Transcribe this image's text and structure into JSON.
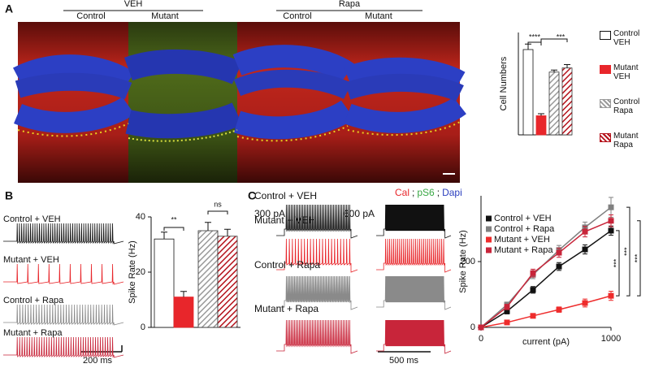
{
  "figure": {
    "panels": [
      "A",
      "B",
      "C"
    ],
    "groups": [
      "VEH",
      "Rapa"
    ],
    "subgroups": [
      "Control",
      "Mutant",
      "Control",
      "Mutant"
    ],
    "stains": [
      {
        "text": "Cal",
        "color": "#e8262b"
      },
      {
        "text": ";",
        "color": "#222222"
      },
      {
        "text": "pS6",
        "color": "#3aa845"
      },
      {
        "text": ";",
        "color": "#222222"
      },
      {
        "text": "Dapi",
        "color": "#2b3fbf"
      }
    ],
    "trace_labels": [
      "Control + VEH",
      "Mutant + VEH",
      "Control + Rapa",
      "Mutant + Rapa"
    ],
    "currents": [
      "300 pA",
      "600 pA"
    ],
    "scale_bars": [
      "200 ms",
      "500 ms"
    ]
  },
  "chart_data": [
    {
      "type": "bar",
      "ylabel": "Cell Numbers",
      "categories": [
        "Control VEH",
        "Mutant VEH",
        "Control Rapa",
        "Mutant Rapa"
      ],
      "values": [
        1250,
        280,
        920,
        980
      ],
      "errors": [
        80,
        30,
        30,
        50
      ],
      "colors": [
        "#ffffff",
        "#e8262b",
        "#9a9a9a",
        "#b5121b"
      ],
      "hatch": [
        false,
        false,
        true,
        true
      ],
      "ylim": [
        0,
        1500
      ],
      "annotations": [
        "****",
        "***"
      ]
    },
    {
      "type": "bar",
      "ylabel": "Spike Rate (Hz)",
      "values": [
        32,
        11,
        35,
        33
      ],
      "errors": [
        2.5,
        2,
        3,
        2.5
      ],
      "colors": [
        "#ffffff",
        "#e8262b",
        "#9a9a9a",
        "#b5121b"
      ],
      "hatch": [
        false,
        false,
        true,
        true
      ],
      "ylim": [
        0,
        40
      ],
      "yticks": [
        0,
        20,
        40
      ],
      "annotations": [
        "**",
        "ns"
      ]
    },
    {
      "type": "line",
      "xlabel": "current (pA)",
      "ylabel": "Spike Rate (Hz)",
      "x": [
        0,
        200,
        400,
        600,
        800,
        1000
      ],
      "xlim": [
        0,
        1000
      ],
      "xticks": [
        0,
        1000
      ],
      "ylim": [
        0,
        400
      ],
      "yticks": [
        0,
        200
      ],
      "legend": "upper left",
      "series": [
        {
          "name": "Control + VEH",
          "color": "#111111",
          "values": [
            0,
            49,
            114,
            185,
            237,
            294
          ],
          "errors": [
            0,
            8,
            10,
            12,
            14,
            14
          ]
        },
        {
          "name": "Control + Rapa",
          "color": "#808080",
          "values": [
            0,
            69,
            160,
            235,
            304,
            365
          ],
          "errors": [
            0,
            8,
            12,
            14,
            16,
            30
          ]
        },
        {
          "name": "Mutant + VEH",
          "color": "#ee2c2c",
          "values": [
            0,
            15,
            35,
            54,
            74,
            96
          ],
          "errors": [
            0,
            4,
            6,
            8,
            12,
            14
          ]
        },
        {
          "name": "Mutant + Rapa",
          "color": "#c8253a",
          "values": [
            0,
            62,
            165,
            227,
            291,
            324
          ],
          "errors": [
            0,
            8,
            12,
            14,
            16,
            18
          ]
        }
      ],
      "annotations": [
        "***",
        "***",
        "***"
      ]
    }
  ]
}
